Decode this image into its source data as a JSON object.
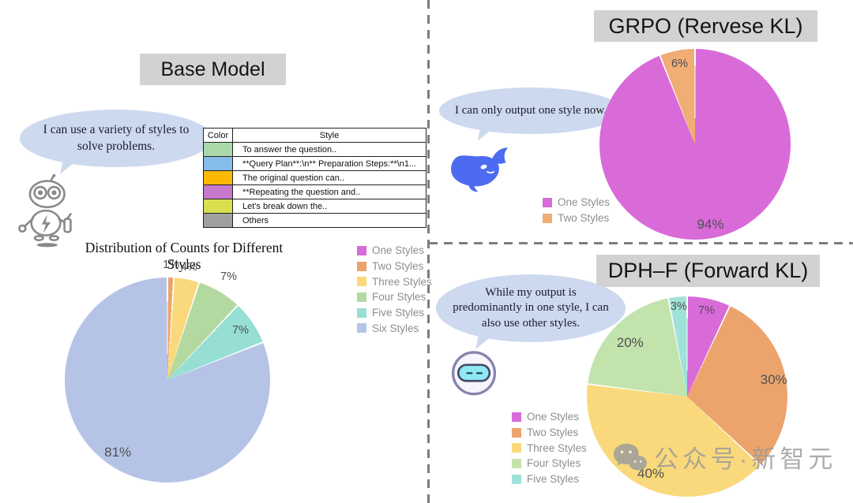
{
  "figure": {
    "panels": {
      "base": {
        "title": "Base Model",
        "bubble_text": "I can use a variety of styles to solve problems.",
        "robot_icon": "gray-line-art-robot",
        "chart_title": "Distribution of Counts for Different Styles",
        "table": {
          "headers": [
            "Color",
            "Style"
          ],
          "rows": [
            {
              "color": "#a9d8a9",
              "style": "To answer the question.."
            },
            {
              "color": "#85bce8",
              "style": "**Query Plan**:\\n** Preparation Steps:**\\n1..."
            },
            {
              "color": "#fcb805",
              "style": "The original question can.."
            },
            {
              "color": "#c678cc",
              "style": "**Repeating the question and.."
            },
            {
              "color": "#d8e04f",
              "style": "Let's break down the.."
            },
            {
              "color": "#a0a0a0",
              "style": "Others"
            }
          ]
        }
      },
      "grpo": {
        "title": "GRPO (Rervese KL)",
        "bubble_text": "I can only output one style now.",
        "mascot_icon": "blue-whale"
      },
      "dph": {
        "title": "DPH–F (Forward KL)",
        "bubble_text": "While my output is predominantly in one style, I can also use other styles.",
        "mascot_icon": "round-robot-face"
      }
    },
    "watermark": {
      "icon": "wechat-icon",
      "text": "公众号·新智元"
    }
  },
  "chart_data": [
    {
      "id": "base",
      "type": "pie",
      "panel": "Base Model",
      "title": "Distribution of Counts for Different Styles",
      "categories": [
        "One Styles",
        "Two Styles",
        "Three Styles",
        "Four Styles",
        "Five Styles",
        "Six Styles"
      ],
      "values": [
        0,
        1,
        4,
        7,
        7,
        81
      ],
      "colors": [
        "#d66dd8",
        "#eca36c",
        "#f9d97b",
        "#b4d9a0",
        "#97ded4",
        "#b5c4e6"
      ],
      "unit": "%",
      "start_angle_deg": 0,
      "direction": "clockwise",
      "legend_position": "right"
    },
    {
      "id": "grpo",
      "type": "pie",
      "panel": "GRPO (Rervese KL)",
      "title": "",
      "categories": [
        "One Styles",
        "Two Styles"
      ],
      "values": [
        94,
        6
      ],
      "colors": [
        "#d96bd9",
        "#f0ad74"
      ],
      "unit": "%",
      "start_angle_deg": 0,
      "direction": "clockwise",
      "legend_position": "left"
    },
    {
      "id": "dph",
      "type": "pie",
      "panel": "DPH–F (Forward KL)",
      "title": "",
      "categories": [
        "One Styles",
        "Two Styles",
        "Three Styles",
        "Four Styles",
        "Five Styles"
      ],
      "values": [
        7,
        30,
        40,
        20,
        3
      ],
      "colors": [
        "#d96bd9",
        "#eca36c",
        "#f9d97b",
        "#c3e3ad",
        "#9fe2da"
      ],
      "unit": "%",
      "start_angle_deg": 0,
      "direction": "clockwise",
      "legend_position": "left"
    }
  ]
}
